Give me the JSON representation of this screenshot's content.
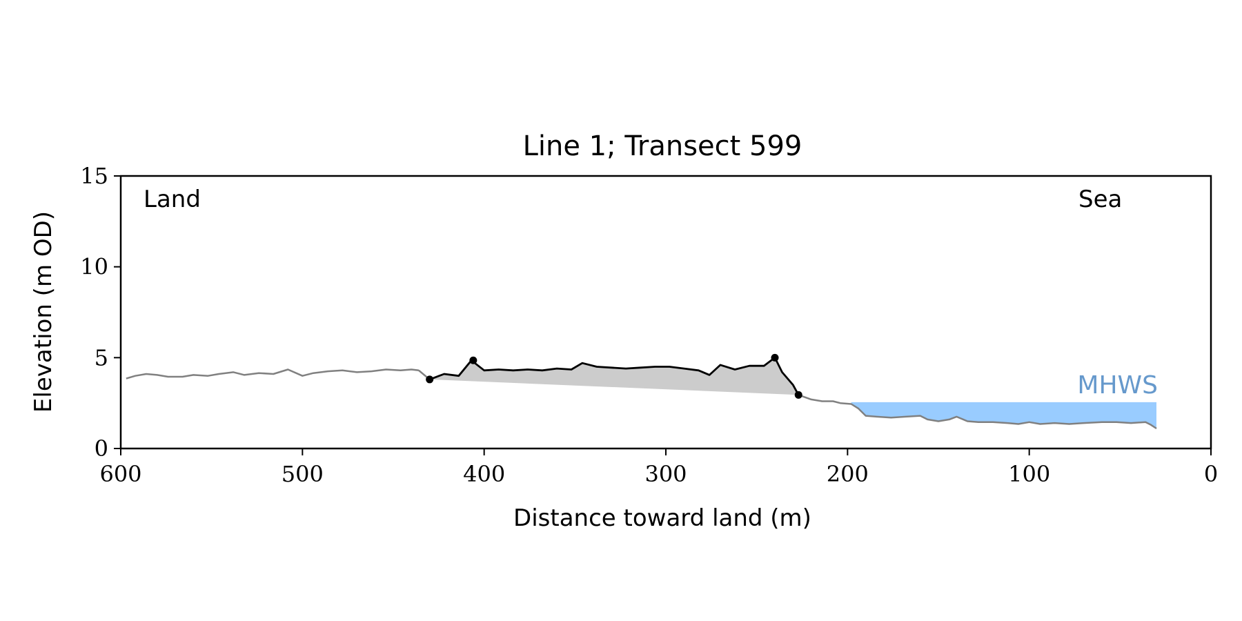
{
  "chart_data": {
    "type": "line",
    "title": "Line 1; Transect 599",
    "xlabel": "Distance toward land (m)",
    "ylabel": "Elevation (m OD)",
    "xlim": [
      600,
      0
    ],
    "ylim": [
      0,
      15
    ],
    "x_ticks": [
      600,
      500,
      400,
      300,
      200,
      100,
      0
    ],
    "y_ticks": [
      0,
      5,
      10,
      15
    ],
    "grid": false,
    "annotations": {
      "land_label": "Land",
      "sea_label": "Sea",
      "mhws_label": "MHWS"
    },
    "mhws": {
      "level": 2.55,
      "x_from": 198,
      "x_to": 30
    },
    "colors": {
      "profile": "#808080",
      "dune": "#000000",
      "dune_fill": "#cccccc",
      "water": "#99ccff",
      "mhws_text": "#6699cc"
    },
    "series": [
      {
        "x": [
          597,
          592,
          586,
          580,
          574,
          566,
          560,
          552,
          546,
          538,
          532,
          524,
          516,
          508,
          500,
          494,
          486,
          478,
          470,
          462,
          454,
          446,
          440,
          436
        ],
        "y": [
          3.85,
          4.0,
          4.1,
          4.05,
          3.95,
          3.95,
          4.05,
          4.0,
          4.1,
          4.2,
          4.05,
          4.15,
          4.1,
          4.35,
          4.0,
          4.15,
          4.25,
          4.3,
          4.2,
          4.25,
          4.35,
          4.3,
          4.35,
          4.3
        ]
      },
      {
        "x": [
          430,
          422,
          414,
          407,
          400,
          392,
          384,
          376,
          368,
          360,
          352,
          346,
          338,
          330,
          322,
          314,
          306,
          298,
          290,
          282,
          276,
          270,
          262,
          254,
          246,
          240,
          236,
          230,
          227
        ],
        "y": [
          3.8,
          4.1,
          4.0,
          4.85,
          4.3,
          4.35,
          4.3,
          4.35,
          4.3,
          4.4,
          4.35,
          4.7,
          4.5,
          4.45,
          4.4,
          4.45,
          4.5,
          4.5,
          4.4,
          4.3,
          4.05,
          4.6,
          4.35,
          4.55,
          4.55,
          5.0,
          4.2,
          3.5,
          2.95
        ]
      },
      {
        "x": [
          227,
          220,
          214,
          208,
          204,
          198,
          194,
          190,
          184,
          176,
          168,
          160,
          156,
          150,
          144,
          140,
          134,
          128,
          120,
          112,
          106,
          100,
          94,
          86,
          78,
          70,
          60,
          52,
          44,
          36,
          33,
          30
        ],
        "y": [
          2.95,
          2.7,
          2.6,
          2.6,
          2.5,
          2.45,
          2.2,
          1.8,
          1.75,
          1.7,
          1.75,
          1.8,
          1.6,
          1.5,
          1.6,
          1.75,
          1.5,
          1.45,
          1.45,
          1.4,
          1.35,
          1.45,
          1.35,
          1.4,
          1.35,
          1.4,
          1.45,
          1.45,
          1.4,
          1.45,
          1.3,
          1.1
        ]
      }
    ],
    "dune_markers": [
      {
        "x": 430,
        "y": 3.8
      },
      {
        "x": 406,
        "y": 4.85
      },
      {
        "x": 240,
        "y": 5.0
      },
      {
        "x": 227,
        "y": 2.95
      }
    ]
  }
}
